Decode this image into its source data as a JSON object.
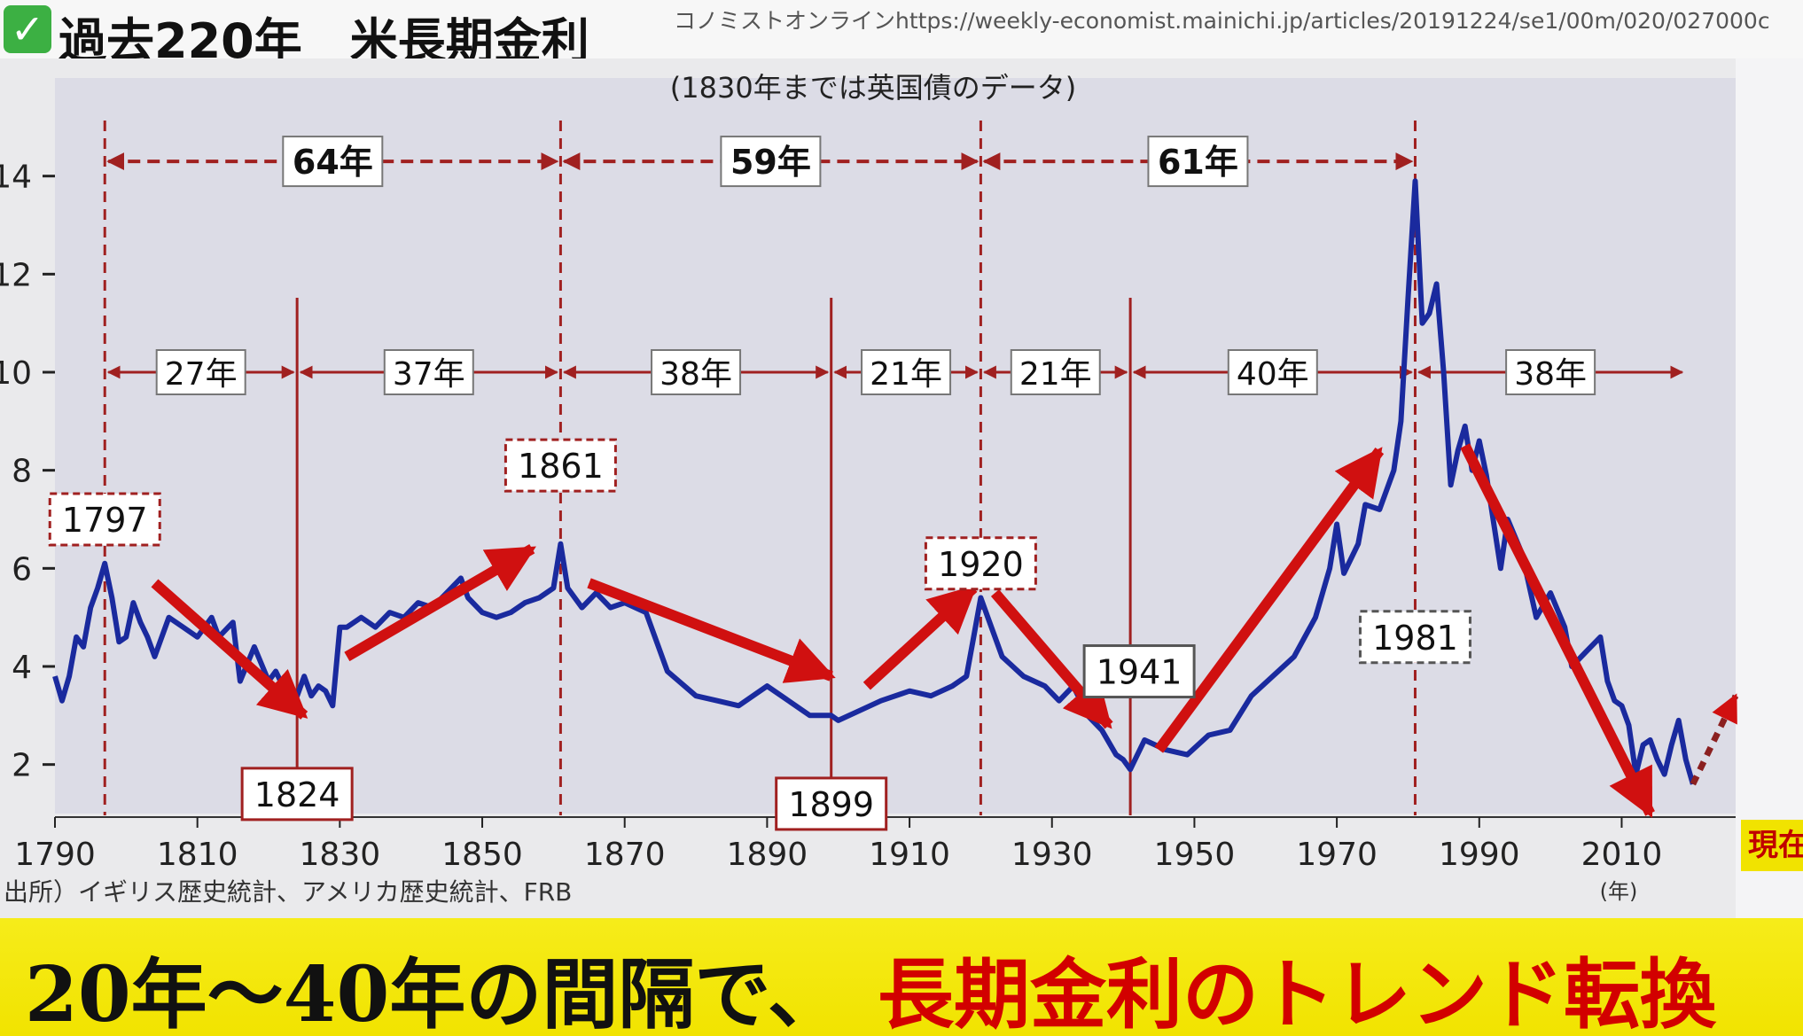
{
  "header": {
    "check_icon": "check-mark-icon",
    "title": "過去220年　米長期金利",
    "source_url": "コノミストオンラインhttps://weekly-economist.mainichi.jp/articles/20191224/se1/00m/020/027000c"
  },
  "caption": {
    "black_text": "20年～40年の間隔で、",
    "red_text": "長期金利のトレンド転換"
  },
  "now_label": "現在",
  "colors": {
    "line": "#1a2a9e",
    "arrow": "#d01010",
    "dashed": "#a02020",
    "caption_bg": "#f1e300",
    "caption_red": "#d20000"
  },
  "chart_data": {
    "type": "line",
    "note": "(1830年までは英国債のデータ)",
    "source": "出所）イギリス歴史統計、アメリカ歴史統計、FRB",
    "x_unit": "(年)",
    "xlim": [
      1790,
      2026
    ],
    "ylim": [
      1,
      16
    ],
    "x_ticks": [
      "1790",
      "1810",
      "1830",
      "1850",
      "1870",
      "1890",
      "1910",
      "1930",
      "1950",
      "1970",
      "1990",
      "2010"
    ],
    "y_ticks": [
      "2",
      "4",
      "6",
      "8",
      "10",
      "12",
      "14"
    ],
    "series": [
      {
        "x": [
          1790,
          1791,
          1792,
          1793,
          1794,
          1795,
          1796,
          1797,
          1798,
          1799,
          1800,
          1801,
          1802,
          1803,
          1804,
          1806,
          1808,
          1810,
          1812,
          1813,
          1815,
          1816,
          1818,
          1820,
          1821,
          1822,
          1823,
          1824,
          1825,
          1826,
          1827,
          1828,
          1829,
          1830,
          1831,
          1833,
          1835,
          1837,
          1839,
          1841,
          1843,
          1845,
          1847,
          1848,
          1850,
          1852,
          1854,
          1856,
          1858,
          1860,
          1861,
          1862,
          1864,
          1866,
          1868,
          1870,
          1873,
          1876,
          1880,
          1883,
          1886,
          1890,
          1893,
          1896,
          1899,
          1900,
          1903,
          1906,
          1910,
          1913,
          1916,
          1918,
          1919,
          1920,
          1921,
          1923,
          1926,
          1929,
          1931,
          1933,
          1935,
          1937,
          1939,
          1940,
          1941,
          1943,
          1946,
          1949,
          1952,
          1955,
          1958,
          1961,
          1964,
          1967,
          1969,
          1970,
          1971,
          1973,
          1974,
          1976,
          1978,
          1979,
          1980,
          1981,
          1982,
          1983,
          1984,
          1985,
          1986,
          1987,
          1988,
          1989,
          1990,
          1991,
          1993,
          1994,
          1996,
          1998,
          2000,
          2002,
          2003,
          2005,
          2007,
          2008,
          2009,
          2010,
          2011,
          2012,
          2013,
          2014,
          2015,
          2016,
          2017,
          2018,
          2019,
          2020
        ],
        "y": [
          3.8,
          3.3,
          3.8,
          4.6,
          4.4,
          5.2,
          5.6,
          6.1,
          5.4,
          4.5,
          4.6,
          5.3,
          4.9,
          4.6,
          4.2,
          5.0,
          4.8,
          4.6,
          5.0,
          4.6,
          4.9,
          3.7,
          4.4,
          3.7,
          3.9,
          3.6,
          3.1,
          3.4,
          3.8,
          3.4,
          3.6,
          3.5,
          3.2,
          4.8,
          4.8,
          5.0,
          4.8,
          5.1,
          5.0,
          5.3,
          5.2,
          5.5,
          5.8,
          5.4,
          5.1,
          5.0,
          5.1,
          5.3,
          5.4,
          5.6,
          6.5,
          5.6,
          5.2,
          5.5,
          5.2,
          5.3,
          5.1,
          3.9,
          3.4,
          3.3,
          3.2,
          3.6,
          3.3,
          3.0,
          3.0,
          2.9,
          3.1,
          3.3,
          3.5,
          3.4,
          3.6,
          3.8,
          4.6,
          5.4,
          5.0,
          4.2,
          3.8,
          3.6,
          3.3,
          3.6,
          3.0,
          2.7,
          2.2,
          2.1,
          1.9,
          2.5,
          2.3,
          2.2,
          2.6,
          2.7,
          3.4,
          3.8,
          4.2,
          5.0,
          6.0,
          6.9,
          5.9,
          6.5,
          7.3,
          7.2,
          8.0,
          9.0,
          11.5,
          13.9,
          11.0,
          11.2,
          11.8,
          10.0,
          7.7,
          8.4,
          8.9,
          8.0,
          8.6,
          7.9,
          6.0,
          7.0,
          6.3,
          5.0,
          5.5,
          4.8,
          4.0,
          4.3,
          4.6,
          3.7,
          3.3,
          3.2,
          2.8,
          1.8,
          2.4,
          2.5,
          2.1,
          1.8,
          2.4,
          2.9,
          2.1,
          1.6
        ],
        "dash_series": [
          [
            2020,
            1.6
          ],
          [
            2026,
            3.4
          ]
        ]
      }
    ],
    "period_arrows": [
      {
        "from": 1797,
        "to": 1861,
        "label": "64年",
        "level": 14.3
      },
      {
        "from": 1861,
        "to": 1920,
        "label": "59年",
        "level": 14.3
      },
      {
        "from": 1920,
        "to": 1981,
        "label": "61年",
        "level": 14.3
      },
      {
        "from": 1797,
        "to": 1824,
        "label": "27年",
        "level": 10.0
      },
      {
        "from": 1824,
        "to": 1861,
        "label": "37年",
        "level": 10.0
      },
      {
        "from": 1861,
        "to": 1899,
        "label": "38年",
        "level": 10.0
      },
      {
        "from": 1899,
        "to": 1920,
        "label": "21年",
        "level": 10.0
      },
      {
        "from": 1920,
        "to": 1941,
        "label": "21年",
        "level": 10.0
      },
      {
        "from": 1941,
        "to": 1981,
        "label": "40年",
        "level": 10.0
      },
      {
        "from": 1981,
        "to": 2019,
        "label": "38年",
        "level": 10.0
      }
    ],
    "turning_points": [
      {
        "year": 1797,
        "label": "1797",
        "kind": "peak"
      },
      {
        "year": 1824,
        "label": "1824",
        "kind": "trough"
      },
      {
        "year": 1861,
        "label": "1861",
        "kind": "peak"
      },
      {
        "year": 1899,
        "label": "1899",
        "kind": "trough"
      },
      {
        "year": 1920,
        "label": "1920",
        "kind": "peak"
      },
      {
        "year": 1941,
        "label": "1941",
        "kind": "trough"
      },
      {
        "year": 1981,
        "label": "1981",
        "kind": "peak"
      }
    ],
    "trend_arrows": [
      {
        "from": [
          1804,
          5.7
        ],
        "to": [
          1825,
          3.0
        ],
        "dir": "down"
      },
      {
        "from": [
          1831,
          4.2
        ],
        "to": [
          1857,
          6.4
        ],
        "dir": "up"
      },
      {
        "from": [
          1865,
          5.7
        ],
        "to": [
          1899,
          3.8
        ],
        "dir": "down"
      },
      {
        "from": [
          1904,
          3.6
        ],
        "to": [
          1919,
          5.6
        ],
        "dir": "up"
      },
      {
        "from": [
          1922,
          5.5
        ],
        "to": [
          1938,
          2.8
        ],
        "dir": "down"
      },
      {
        "from": [
          1945,
          2.3
        ],
        "to": [
          1976,
          8.4
        ],
        "dir": "up"
      },
      {
        "from": [
          1988,
          8.5
        ],
        "to": [
          2014,
          1.0
        ],
        "dir": "down"
      }
    ]
  }
}
